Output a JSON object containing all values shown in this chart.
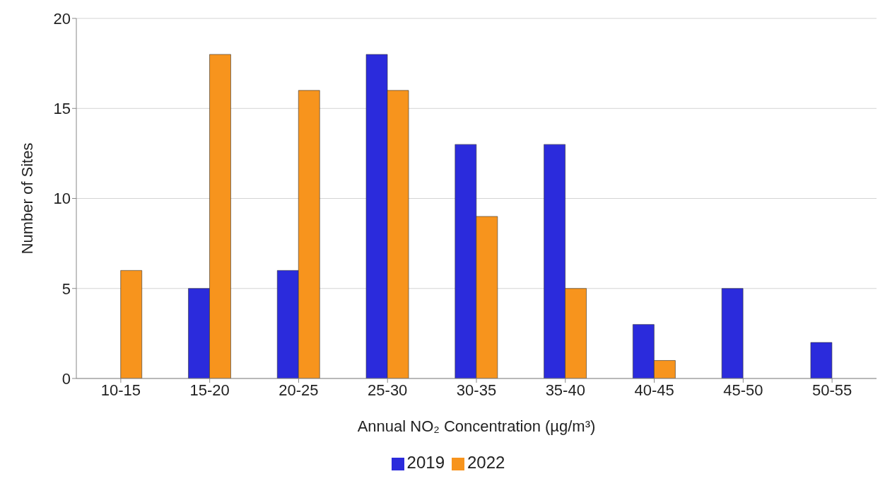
{
  "chart_data": {
    "type": "bar",
    "xlabel": "Annual NO₂ Concentration (µg/m³)",
    "ylabel": "Number of Sites",
    "categories": [
      "10-15",
      "15-20",
      "20-25",
      "25-30",
      "30-35",
      "35-40",
      "40-45",
      "45-50",
      "50-55"
    ],
    "series": [
      {
        "name": "2019",
        "color": "#2b2bdc",
        "values": [
          0,
          5,
          6,
          18,
          13,
          13,
          3,
          5,
          2
        ]
      },
      {
        "name": "2022",
        "color": "#f7941d",
        "values": [
          6,
          18,
          16,
          16,
          9,
          5,
          1,
          0,
          0
        ]
      }
    ],
    "ylim": [
      0,
      20
    ],
    "yticks": [
      0,
      5,
      10,
      15,
      20
    ],
    "grid": "y",
    "legend": "bottom"
  }
}
